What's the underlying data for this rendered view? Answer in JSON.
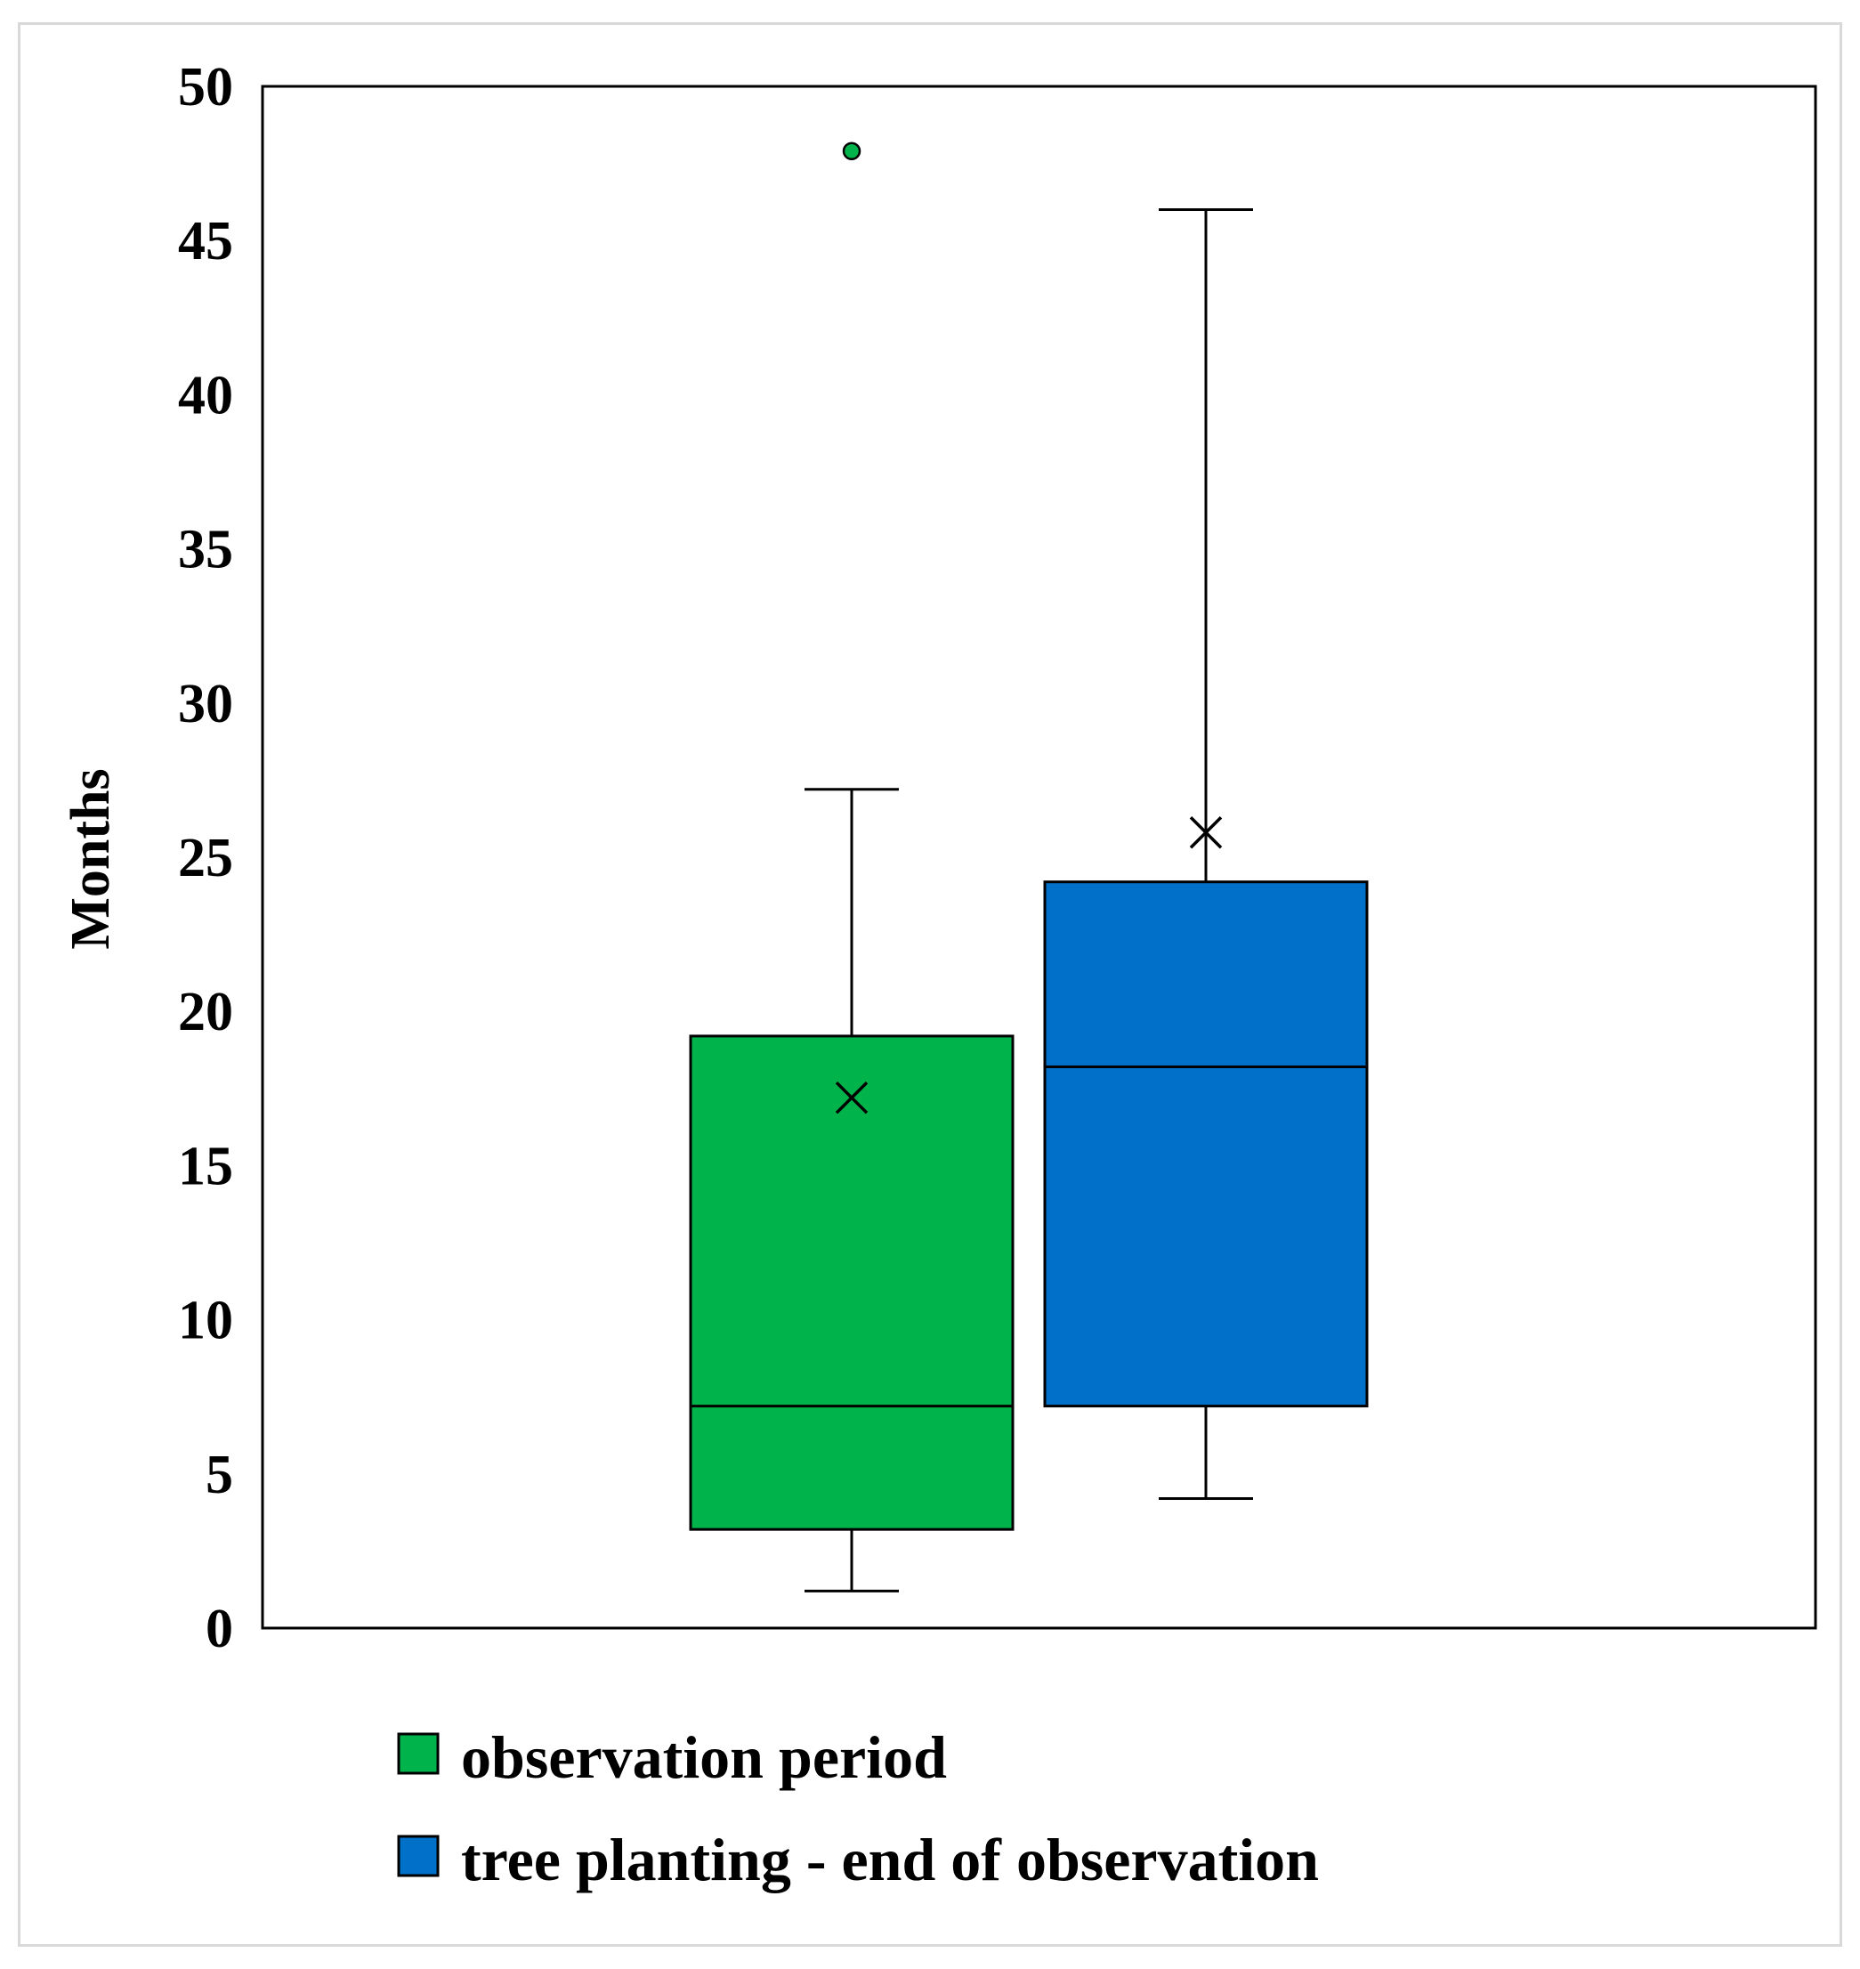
{
  "chart_data": {
    "type": "box",
    "title": "",
    "xlabel": "",
    "ylabel": "Months",
    "ylim": [
      0,
      50
    ],
    "yticks": [
      0,
      5,
      10,
      15,
      20,
      25,
      30,
      35,
      40,
      45,
      50
    ],
    "grid": false,
    "legend_position": "bottom",
    "series": [
      {
        "name": "observation period",
        "color": "#00b34a",
        "whisker_low": 1.2,
        "q1": 3.2,
        "median": 7.2,
        "q3": 19.2,
        "whisker_high": 27.2,
        "mean": 17.2,
        "outliers": [
          47.9
        ]
      },
      {
        "name": "tree planting - end of observation",
        "color": "#0070c8",
        "whisker_low": 4.2,
        "q1": 7.2,
        "median": 18.2,
        "q3": 24.2,
        "whisker_high": 46.0,
        "mean": 25.8,
        "outliers": []
      }
    ]
  }
}
